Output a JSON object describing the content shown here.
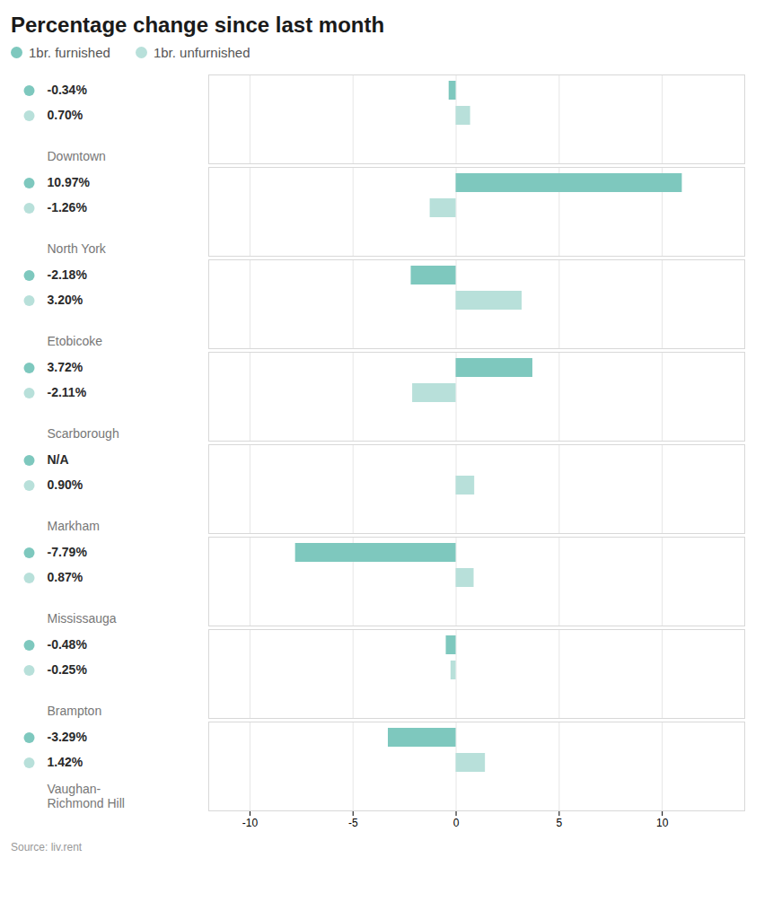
{
  "chart_data": {
    "type": "bar",
    "orientation": "horizontal",
    "title": "Percentage change since last month",
    "categories": [
      "Downtown",
      "North York",
      "Etobicoke",
      "Scarborough",
      "Markham",
      "Mississauga",
      "Brampton",
      "Vaughan-\nRichmond Hill"
    ],
    "series": [
      {
        "name": "1br. furnished",
        "color": "#7ec8be",
        "values": [
          -0.34,
          10.97,
          -2.18,
          3.72,
          null,
          -7.79,
          -0.48,
          -3.29
        ],
        "value_labels": [
          "-0.34%",
          "10.97%",
          "-2.18%",
          "3.72%",
          "N/A",
          "-7.79%",
          "-0.48%",
          "-3.29%"
        ]
      },
      {
        "name": "1br. unfurnished",
        "color": "#b8e0da",
        "values": [
          0.7,
          -1.26,
          3.2,
          -2.11,
          0.9,
          0.87,
          -0.25,
          1.42
        ],
        "value_labels": [
          "0.70%",
          "-1.26%",
          "3.20%",
          "-2.11%",
          "0.90%",
          "0.87%",
          "-0.25%",
          "1.42%"
        ]
      }
    ],
    "xlim": [
      -12,
      14
    ],
    "xticks": [
      -10,
      -5,
      0,
      5,
      10
    ],
    "grid": true,
    "data_labels": true,
    "legend": "top",
    "annotations": [
      "Source: liv.rent"
    ]
  }
}
